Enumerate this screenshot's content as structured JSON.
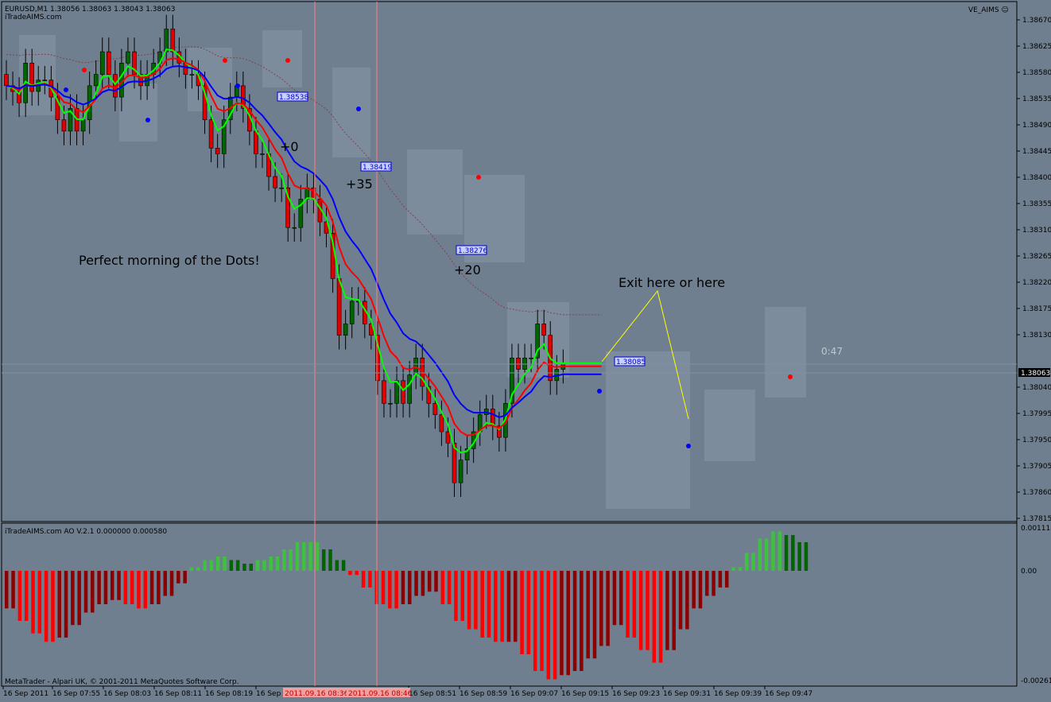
{
  "header": {
    "symbol_line": "EURUSD,M1  1.38056 1.38063 1.38043 1.38063",
    "source": "iTradeAIMS.com",
    "indicator_name": "VE_AIMS ☺"
  },
  "subwindow": {
    "title": "iTradeAIMS.com AO V.2.1 0.000000 0.000580",
    "scale_top": "0.00111",
    "scale_zero": "0.00",
    "scale_bottom": "-0.00261"
  },
  "footer": {
    "copyright": "MetaTrader - Alpari UK, © 2001-2011 MetaQuotes Software Corp."
  },
  "time_axis": {
    "labels": [
      "16 Sep 2011",
      "16 Sep 07:55",
      "16 Sep 08:03",
      "16 Sep 08:11",
      "16 Sep 08:19",
      "16 Sep",
      "16 Sep 08:51",
      "16 Sep 08:59",
      "16 Sep 09:07",
      "16 Sep 09:15",
      "16 Sep 09:23",
      "16 Sep 09:31",
      "16 Sep 09:39",
      "16 Sep 09:47"
    ],
    "highlight_1": "2011.09.16 08:36",
    "highlight_2": "2011.09.16 08:46"
  },
  "price_axis": {
    "labels": [
      "1.38670",
      "1.38625",
      "1.38580",
      "1.38535",
      "1.38490",
      "1.38445",
      "1.38400",
      "1.38355",
      "1.38310",
      "1.38265",
      "1.38220",
      "1.38175",
      "1.38130",
      "1.38040",
      "1.37995",
      "1.37950",
      "1.37905",
      "1.37860",
      "1.37815"
    ],
    "current_price": "1.38063"
  },
  "annotations": {
    "main_text": "Perfect morning of the Dots!",
    "plus0": "+0",
    "plus35": "+35",
    "plus20": "+20",
    "exit_text": "Exit here or here",
    "timer": "0:47"
  },
  "price_tags": [
    "1.38538",
    "1.38419",
    "1.38276",
    "1.38085"
  ],
  "colors": {
    "background": "#6f7f8f",
    "bull_candle": "#006400",
    "bear_candle": "#e00000",
    "ma_green": "#00ff00",
    "ma_red": "#ff0000",
    "ma_blue": "#0000ff",
    "ao_up": "#40c040",
    "ao_down": "#ff0000"
  },
  "chart_data": {
    "type": "candlestick",
    "symbol": "EURUSD",
    "timeframe": "M1",
    "ylim": [
      1.378,
      1.387
    ],
    "candles_close_approx": [
      1.3856,
      1.3855,
      1.3853,
      1.386,
      1.3855,
      1.3857,
      1.3857,
      1.3854,
      1.385,
      1.3848,
      1.3852,
      1.3848,
      1.385,
      1.3856,
      1.3858,
      1.3862,
      1.3858,
      1.3854,
      1.386,
      1.3862,
      1.3858,
      1.3856,
      1.3858,
      1.386,
      1.3862,
      1.3866,
      1.3862,
      1.386,
      1.3858,
      1.3858,
      1.3856,
      1.385,
      1.3845,
      1.3844,
      1.385,
      1.3854,
      1.3856,
      1.3852,
      1.3848,
      1.3844,
      1.3844,
      1.384,
      1.3838,
      1.3838,
      1.3831,
      1.3831,
      1.3836,
      1.3838,
      1.3836,
      1.3832,
      1.383,
      1.3822,
      1.3812,
      1.3814,
      1.3818,
      1.3818,
      1.3814,
      1.3812,
      1.3804,
      1.38,
      1.38,
      1.3804,
      1.38,
      1.3805,
      1.3808,
      1.3803,
      1.38,
      1.3798,
      1.3795,
      1.3793,
      1.3786,
      1.379,
      1.3792,
      1.3795,
      1.3798,
      1.3799,
      1.3796,
      1.3794,
      1.38,
      1.3808,
      1.3806,
      1.3808,
      1.3808,
      1.3814,
      1.3812,
      1.3804,
      1.3806,
      1.3807
    ],
    "ao_values_approx": [
      -0.0009,
      -0.0012,
      -0.0015,
      -0.0017,
      -0.0016,
      -0.0013,
      -0.001,
      -0.0008,
      -0.0007,
      -0.0008,
      -0.0009,
      -0.0008,
      -0.0006,
      -0.0003,
      0.0001,
      0.0003,
      0.0004,
      0.0003,
      0.0002,
      0.0003,
      0.0004,
      0.0006,
      0.0008,
      0.0008,
      0.0006,
      0.0003,
      -0.0001,
      -0.0004,
      -0.0008,
      -0.0009,
      -0.0008,
      -0.0006,
      -0.0005,
      -0.0008,
      -0.0012,
      -0.0014,
      -0.0016,
      -0.0017,
      -0.0017,
      -0.002,
      -0.0024,
      -0.0026,
      -0.0025,
      -0.0024,
      -0.0021,
      -0.0018,
      -0.0013,
      -0.0016,
      -0.0019,
      -0.0022,
      -0.0019,
      -0.0014,
      -0.0009,
      -0.0006,
      -0.0004,
      0.0001,
      0.0005,
      0.0009,
      0.0011,
      0.001,
      0.0008
    ]
  }
}
